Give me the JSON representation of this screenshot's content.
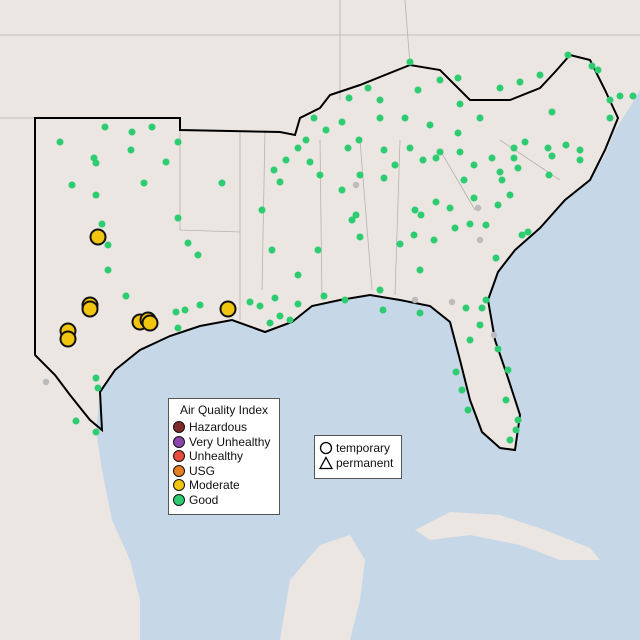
{
  "legend_aqi": {
    "title": "Air Quality Index",
    "items": [
      {
        "label": "Hazardous",
        "color": "#7e2a2a"
      },
      {
        "label": "Very Unhealthy",
        "color": "#8e44ad"
      },
      {
        "label": "Unhealthy",
        "color": "#e74c3c"
      },
      {
        "label": "USG",
        "color": "#e67e22"
      },
      {
        "label": "Moderate",
        "color": "#f1c40f"
      },
      {
        "label": "Good",
        "color": "#2ecc71"
      }
    ]
  },
  "legend_shape": {
    "items": [
      {
        "label": "temporary",
        "icon": "circle-icon"
      },
      {
        "label": "permanent",
        "icon": "triangle-icon"
      }
    ]
  },
  "colors": {
    "land": "#ebe6e2",
    "water": "#c6d8e8",
    "no_data": "#bbbbbb"
  }
}
